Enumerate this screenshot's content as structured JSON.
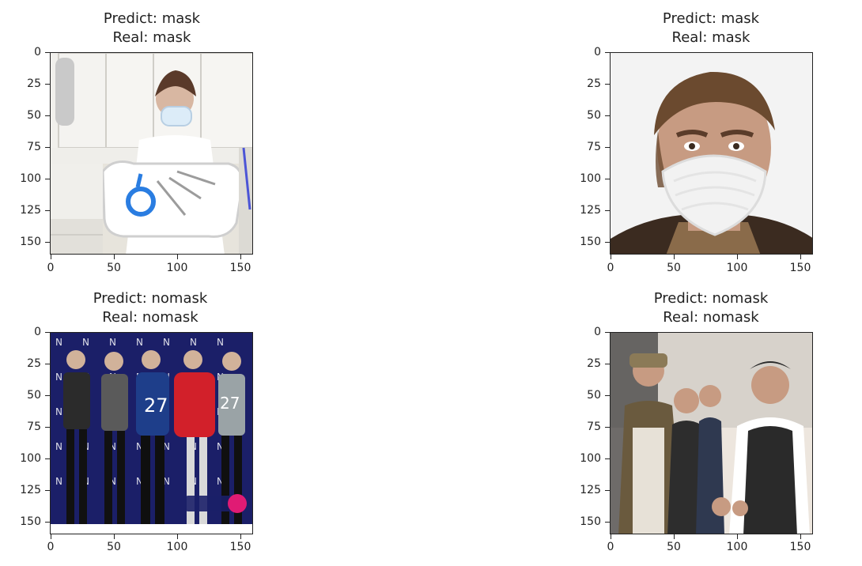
{
  "chart_data": [
    {
      "type": "image",
      "title_line1": "Predict: mask",
      "title_line2": "Real: mask",
      "xticks": [
        "0",
        "50",
        "100",
        "150"
      ],
      "yticks": [
        "0",
        "25",
        "50",
        "75",
        "100",
        "125",
        "150"
      ],
      "xlim": [
        0,
        160
      ],
      "ylim": [
        160,
        0
      ],
      "scene": "clinic-mask",
      "image_theme": {
        "bg": "#e7e4dc",
        "accent": "#2a7de1",
        "skin": "#d7b7a2",
        "mask": "#d9ebf7"
      }
    },
    {
      "type": "image",
      "title_line1": "Predict: mask",
      "title_line2": "Real: mask",
      "xticks": [
        "0",
        "50",
        "100",
        "150"
      ],
      "yticks": [
        "0",
        "25",
        "50",
        "75",
        "100",
        "125",
        "150"
      ],
      "xlim": [
        0,
        160
      ],
      "ylim": [
        160,
        0
      ],
      "scene": "portrait-mask",
      "image_theme": {
        "bg": "#f2f2f2",
        "skin": "#c79b82",
        "hair": "#6b4a2f",
        "mask": "#f1f1f1",
        "shirt": "#3b2b20"
      }
    },
    {
      "type": "image",
      "title_line1": "Predict: nomask",
      "title_line2": "Real: nomask",
      "xticks": [
        "0",
        "50",
        "100",
        "150"
      ],
      "yticks": [
        "0",
        "25",
        "50",
        "75",
        "100",
        "125",
        "150"
      ],
      "xlim": [
        0,
        160
      ],
      "ylim": [
        160,
        0
      ],
      "scene": "group-event",
      "image_theme": {
        "bg": "#1b1f68",
        "pink": "#e01b74"
      }
    },
    {
      "type": "image",
      "title_line1": "Predict: nomask",
      "title_line2": "Real: nomask",
      "xticks": [
        "0",
        "50",
        "100",
        "150"
      ],
      "yticks": [
        "0",
        "25",
        "50",
        "75",
        "100",
        "125",
        "150"
      ],
      "xlim": [
        0,
        160
      ],
      "ylim": [
        160,
        0
      ],
      "scene": "men-greeting",
      "image_theme": {
        "bg": "#ede6de",
        "dark": "#2a2a2a"
      }
    }
  ]
}
